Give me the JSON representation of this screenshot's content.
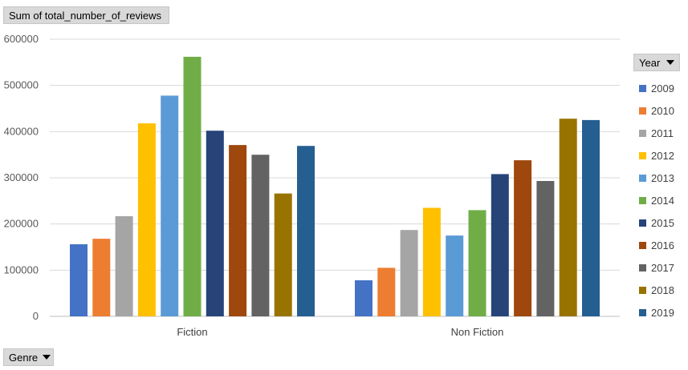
{
  "measure_button": {
    "label": "Sum of total_number_of_reviews"
  },
  "year_button": {
    "label": "Year"
  },
  "genre_button": {
    "label": "Genre"
  },
  "chart_data": {
    "type": "bar",
    "title": "",
    "xlabel": "",
    "ylabel": "",
    "ylim": [
      0,
      600000
    ],
    "yticks": [
      "0",
      "100000",
      "200000",
      "300000",
      "400000",
      "500000",
      "600000"
    ],
    "categories": [
      "Fiction",
      "Non Fiction"
    ],
    "legend_title": "Year",
    "legend_position": "right",
    "series": [
      {
        "name": "2009",
        "color": "#4472c4",
        "values": [
          156000,
          78000
        ]
      },
      {
        "name": "2010",
        "color": "#ed7d31",
        "values": [
          168000,
          105000
        ]
      },
      {
        "name": "2011",
        "color": "#a5a5a5",
        "values": [
          217000,
          187000
        ]
      },
      {
        "name": "2012",
        "color": "#ffc000",
        "values": [
          418000,
          235000
        ]
      },
      {
        "name": "2013",
        "color": "#5b9bd5",
        "values": [
          478000,
          175000
        ]
      },
      {
        "name": "2014",
        "color": "#70ad47",
        "values": [
          562000,
          230000
        ]
      },
      {
        "name": "2015",
        "color": "#264478",
        "values": [
          402000,
          308000
        ]
      },
      {
        "name": "2016",
        "color": "#9e480e",
        "values": [
          371000,
          338000
        ]
      },
      {
        "name": "2017",
        "color": "#636363",
        "values": [
          350000,
          293000
        ]
      },
      {
        "name": "2018",
        "color": "#997300",
        "values": [
          266000,
          428000
        ]
      },
      {
        "name": "2019",
        "color": "#255e91",
        "values": [
          369000,
          425000
        ]
      }
    ]
  }
}
